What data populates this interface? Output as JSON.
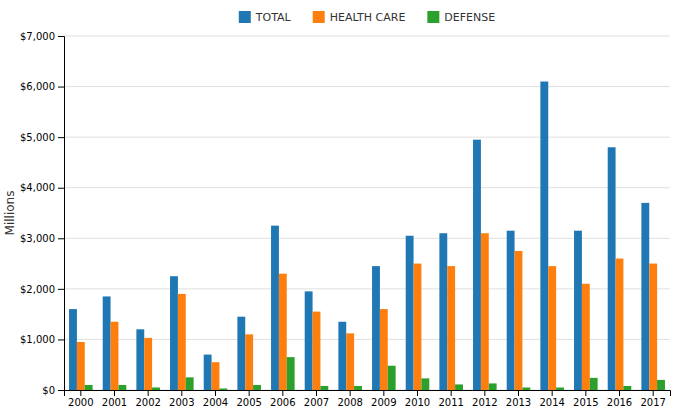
{
  "chart_data": {
    "type": "bar",
    "categories": [
      "2000",
      "2001",
      "2002",
      "2003",
      "2004",
      "2005",
      "2006",
      "2007",
      "2008",
      "2009",
      "2010",
      "2011",
      "2012",
      "2013",
      "2014",
      "2015",
      "2016",
      "2017"
    ],
    "series": [
      {
        "name": "TOTAL",
        "values": [
          1600,
          1850,
          1200,
          2250,
          700,
          1450,
          3250,
          1950,
          1350,
          2450,
          3050,
          3100,
          4950,
          3150,
          6100,
          3150,
          4800,
          3700
        ]
      },
      {
        "name": "HEALTH CARE",
        "values": [
          950,
          1350,
          1030,
          1900,
          550,
          1100,
          2300,
          1550,
          1120,
          1600,
          2500,
          2450,
          3100,
          2750,
          2450,
          2100,
          2600,
          2500
        ]
      },
      {
        "name": "DEFENSE",
        "values": [
          100,
          100,
          50,
          250,
          30,
          100,
          650,
          80,
          80,
          480,
          230,
          110,
          130,
          50,
          50,
          240,
          80,
          200
        ]
      }
    ],
    "y_label": "Millions",
    "ylim": [
      0,
      7000
    ],
    "yticks": [
      {
        "value": 0,
        "label": "$0"
      },
      {
        "value": 1000,
        "label": "$1,000"
      },
      {
        "value": 2000,
        "label": "$2,000"
      },
      {
        "value": 3000,
        "label": "$3,000"
      },
      {
        "value": 4000,
        "label": "$4,000"
      },
      {
        "value": 5000,
        "label": "$5,000"
      },
      {
        "value": 6000,
        "label": "$6,000"
      },
      {
        "value": 7000,
        "label": "$7,000"
      }
    ],
    "grid": true,
    "legend": "top"
  }
}
